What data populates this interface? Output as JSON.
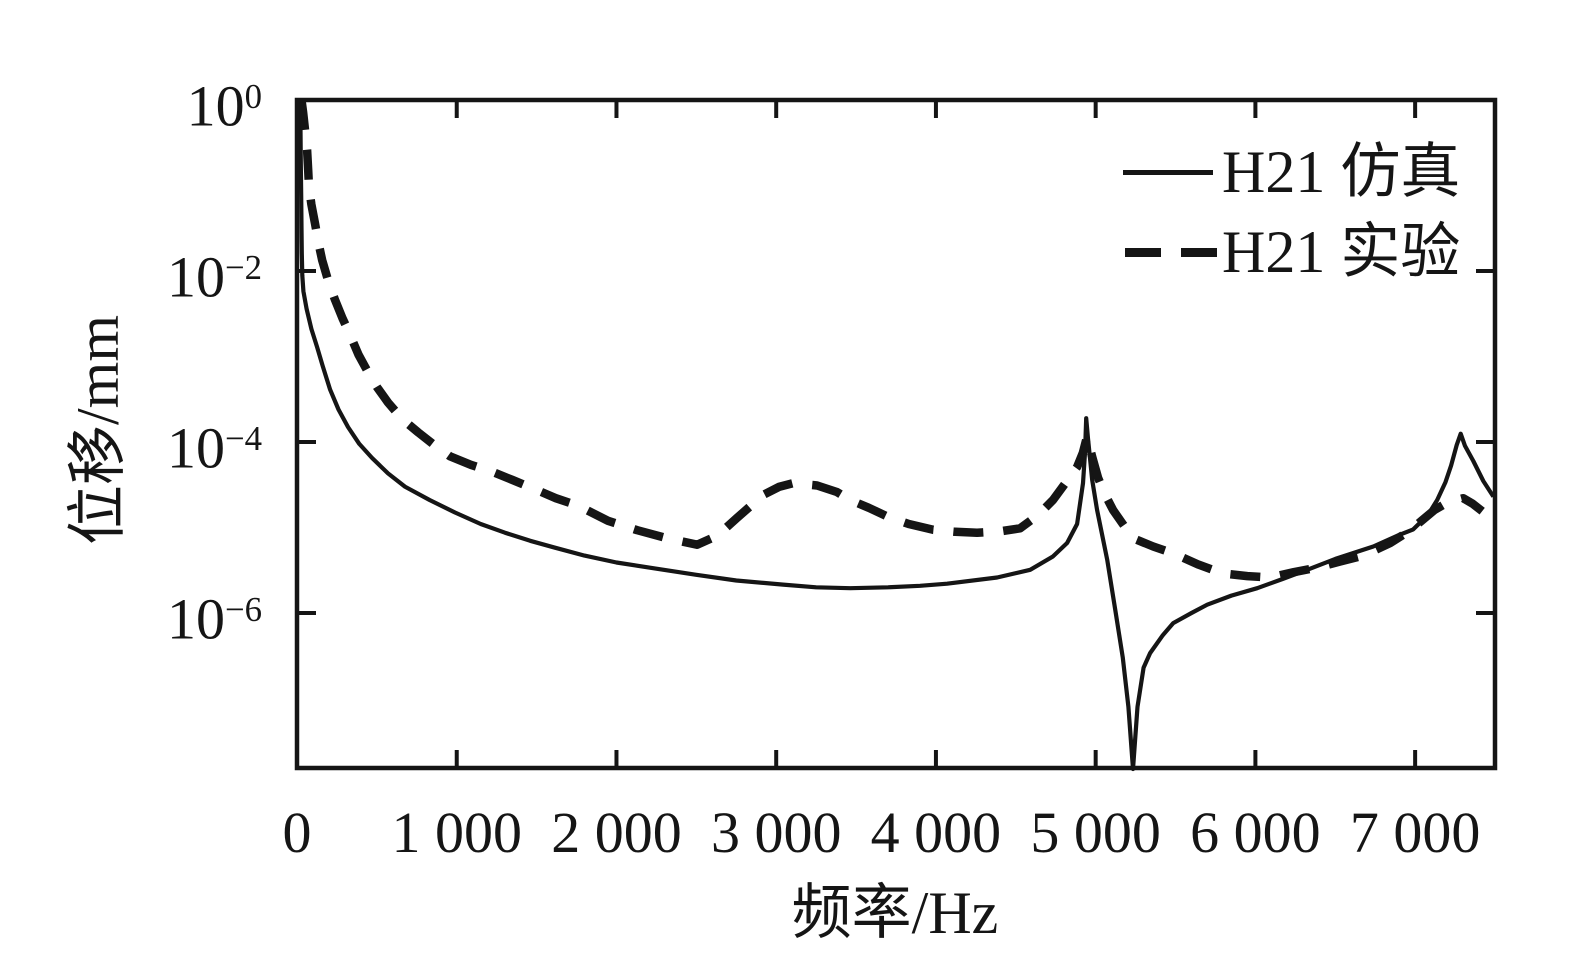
{
  "figure": {
    "background_color": "#ffffff",
    "ink_color": "#151515"
  },
  "chart_data": {
    "type": "line",
    "title": "",
    "xlabel": "频率/Hz",
    "ylabel": "位移/mm",
    "x_scale": "linear",
    "y_scale": "log",
    "xlim": [
      0,
      7500
    ],
    "ylim": [
      1.54e-08,
      1
    ],
    "grid": false,
    "legend_position": "inside-top-right",
    "x_ticks": [
      {
        "value": 0,
        "label": "0"
      },
      {
        "value": 1000,
        "label": "1 000"
      },
      {
        "value": 2000,
        "label": "2 000"
      },
      {
        "value": 3000,
        "label": "3 000"
      },
      {
        "value": 4000,
        "label": "4 000"
      },
      {
        "value": 5000,
        "label": "5 000"
      },
      {
        "value": 6000,
        "label": "6 000"
      },
      {
        "value": 7000,
        "label": "7 000"
      }
    ],
    "y_ticks": [
      {
        "log10": 0,
        "base": "10",
        "exp": "0"
      },
      {
        "log10": -2,
        "base": "10",
        "exp": "−2"
      },
      {
        "log10": -4,
        "base": "10",
        "exp": "−4"
      },
      {
        "log10": -6,
        "base": "10",
        "exp": "−6"
      }
    ],
    "series": [
      {
        "name": "H21 仿真",
        "style": "solid",
        "line_width": 4.2,
        "color": "#151515",
        "points": [
          [
            20,
            1.0
          ],
          [
            22,
            0.45
          ],
          [
            24,
            0.18
          ],
          [
            26,
            0.075
          ],
          [
            28,
            0.032
          ],
          [
            30,
            0.016
          ],
          [
            33,
            0.0089
          ],
          [
            40,
            0.0058
          ],
          [
            60,
            0.0036
          ],
          [
            90,
            0.0021
          ],
          [
            125,
            0.0013
          ],
          [
            160,
            0.00078
          ],
          [
            207,
            0.00041
          ],
          [
            260,
            0.00024
          ],
          [
            319,
            0.00015
          ],
          [
            390,
            9.5e-05
          ],
          [
            470,
            6.5e-05
          ],
          [
            570,
            4.3e-05
          ],
          [
            676,
            3e-05
          ],
          [
            830,
            2.1e-05
          ],
          [
            989,
            1.5e-05
          ],
          [
            1150,
            1.1e-05
          ],
          [
            1302,
            8.7e-06
          ],
          [
            1460,
            7e-06
          ],
          [
            1615,
            5.8e-06
          ],
          [
            1800,
            4.7e-06
          ],
          [
            2000,
            3.9e-06
          ],
          [
            2250,
            3.3e-06
          ],
          [
            2500,
            2.8e-06
          ],
          [
            2750,
            2.4e-06
          ],
          [
            3043,
            2.15e-06
          ],
          [
            3250,
            2e-06
          ],
          [
            3463,
            1.95e-06
          ],
          [
            3700,
            2e-06
          ],
          [
            3900,
            2.08e-06
          ],
          [
            4070,
            2.2e-06
          ],
          [
            4383,
            2.6e-06
          ],
          [
            4590,
            3.2e-06
          ],
          [
            4733,
            4.6e-06
          ],
          [
            4821,
            6.6e-06
          ],
          [
            4884,
            1.1e-05
          ],
          [
            4921,
            3.3e-05
          ],
          [
            4933,
            7.5e-05
          ],
          [
            4941,
            0.00019
          ],
          [
            4952,
            0.00011
          ],
          [
            4978,
            3.6e-05
          ],
          [
            5009,
            1.6e-05
          ],
          [
            5072,
            4.2e-06
          ],
          [
            5122,
            1.1e-06
          ],
          [
            5170,
            3e-07
          ],
          [
            5205,
            8e-08
          ],
          [
            5234,
            1.5e-08
          ],
          [
            5262,
            8e-08
          ],
          [
            5300,
            2.3e-07
          ],
          [
            5341,
            3.4e-07
          ],
          [
            5420,
            5.5e-07
          ],
          [
            5485,
            7.6e-07
          ],
          [
            5600,
            1e-06
          ],
          [
            5698,
            1.25e-06
          ],
          [
            5850,
            1.6e-06
          ],
          [
            6011,
            1.95e-06
          ],
          [
            6170,
            2.5e-06
          ],
          [
            6324,
            3.2e-06
          ],
          [
            6500,
            4.3e-06
          ],
          [
            6738,
            6e-06
          ],
          [
            6900,
            8.2e-06
          ],
          [
            6988,
            9.5e-06
          ],
          [
            7080,
            1.4e-05
          ],
          [
            7138,
            2.1e-05
          ],
          [
            7190,
            3.4e-05
          ],
          [
            7225,
            5.3e-05
          ],
          [
            7260,
            9.2e-05
          ],
          [
            7285,
            0.000125
          ],
          [
            7312,
            9e-05
          ],
          [
            7364,
            6e-05
          ],
          [
            7427,
            3.5e-05
          ],
          [
            7490,
            2.3e-05
          ]
        ]
      },
      {
        "name": "H21 实验",
        "style": "dashed",
        "line_width": 8.5,
        "dash_pattern": [
          30,
          20
        ],
        "color": "#151515",
        "points": [
          [
            28,
            1.0
          ],
          [
            38,
            0.72
          ],
          [
            50,
            0.45
          ],
          [
            63,
            0.26
          ],
          [
            70,
            0.15
          ],
          [
            75,
            0.096
          ],
          [
            90,
            0.06
          ],
          [
            113,
            0.036
          ],
          [
            135,
            0.021
          ],
          [
            157,
            0.0135
          ],
          [
            200,
            0.0072
          ],
          [
            238,
            0.0046
          ],
          [
            285,
            0.0028
          ],
          [
            332,
            0.0018
          ],
          [
            385,
            0.00105
          ],
          [
            438,
            0.00069
          ],
          [
            500,
            0.00044
          ],
          [
            570,
            0.00029
          ],
          [
            660,
            0.000185
          ],
          [
            758,
            0.00013
          ],
          [
            860,
            9.2e-05
          ],
          [
            958,
            6.8e-05
          ],
          [
            1090,
            5.4e-05
          ],
          [
            1221,
            4.5e-05
          ],
          [
            1350,
            3.6e-05
          ],
          [
            1471,
            2.9e-05
          ],
          [
            1620,
            2.2e-05
          ],
          [
            1760,
            1.8e-05
          ],
          [
            1947,
            1.2e-05
          ],
          [
            2130,
            9.3e-06
          ],
          [
            2317,
            7.5e-06
          ],
          [
            2420,
            6.8e-06
          ],
          [
            2505,
            6.3e-06
          ],
          [
            2630,
            8e-06
          ],
          [
            2755,
            1.3e-05
          ],
          [
            2918,
            2.4e-05
          ],
          [
            3020,
            3e-05
          ],
          [
            3106,
            3.3e-05
          ],
          [
            3256,
            3.1e-05
          ],
          [
            3380,
            2.6e-05
          ],
          [
            3463,
            2.1e-05
          ],
          [
            3580,
            1.7e-05
          ],
          [
            3694,
            1.35e-05
          ],
          [
            3830,
            1.1e-05
          ],
          [
            3982,
            9.4e-06
          ],
          [
            4120,
            8.9e-06
          ],
          [
            4258,
            8.7e-06
          ],
          [
            4400,
            9e-06
          ],
          [
            4527,
            9.8e-06
          ],
          [
            4640,
            1.4e-05
          ],
          [
            4733,
            2.1e-05
          ],
          [
            4810,
            3.3e-05
          ],
          [
            4884,
            5.1e-05
          ],
          [
            4920,
            7.5e-05
          ],
          [
            4946,
            0.000115
          ],
          [
            4980,
            6.5e-05
          ],
          [
            5015,
            3.8e-05
          ],
          [
            5060,
            2.4e-05
          ],
          [
            5109,
            1.6e-05
          ],
          [
            5170,
            1.1e-05
          ],
          [
            5234,
            7.5e-06
          ],
          [
            5360,
            6e-06
          ],
          [
            5485,
            5e-06
          ],
          [
            5640,
            3.7e-06
          ],
          [
            5798,
            2.9e-06
          ],
          [
            5950,
            2.7e-06
          ],
          [
            6092,
            2.6e-06
          ],
          [
            6240,
            3e-06
          ],
          [
            6386,
            3.4e-06
          ],
          [
            6530,
            4e-06
          ],
          [
            6675,
            4.7e-06
          ],
          [
            6844,
            6.6e-06
          ],
          [
            6960,
            9e-06
          ],
          [
            7040,
            1.2e-05
          ],
          [
            7120,
            1.6e-05
          ],
          [
            7200,
            1.95e-05
          ],
          [
            7301,
            2.2e-05
          ],
          [
            7360,
            1.9e-05
          ],
          [
            7420,
            1.55e-05
          ]
        ]
      }
    ]
  }
}
